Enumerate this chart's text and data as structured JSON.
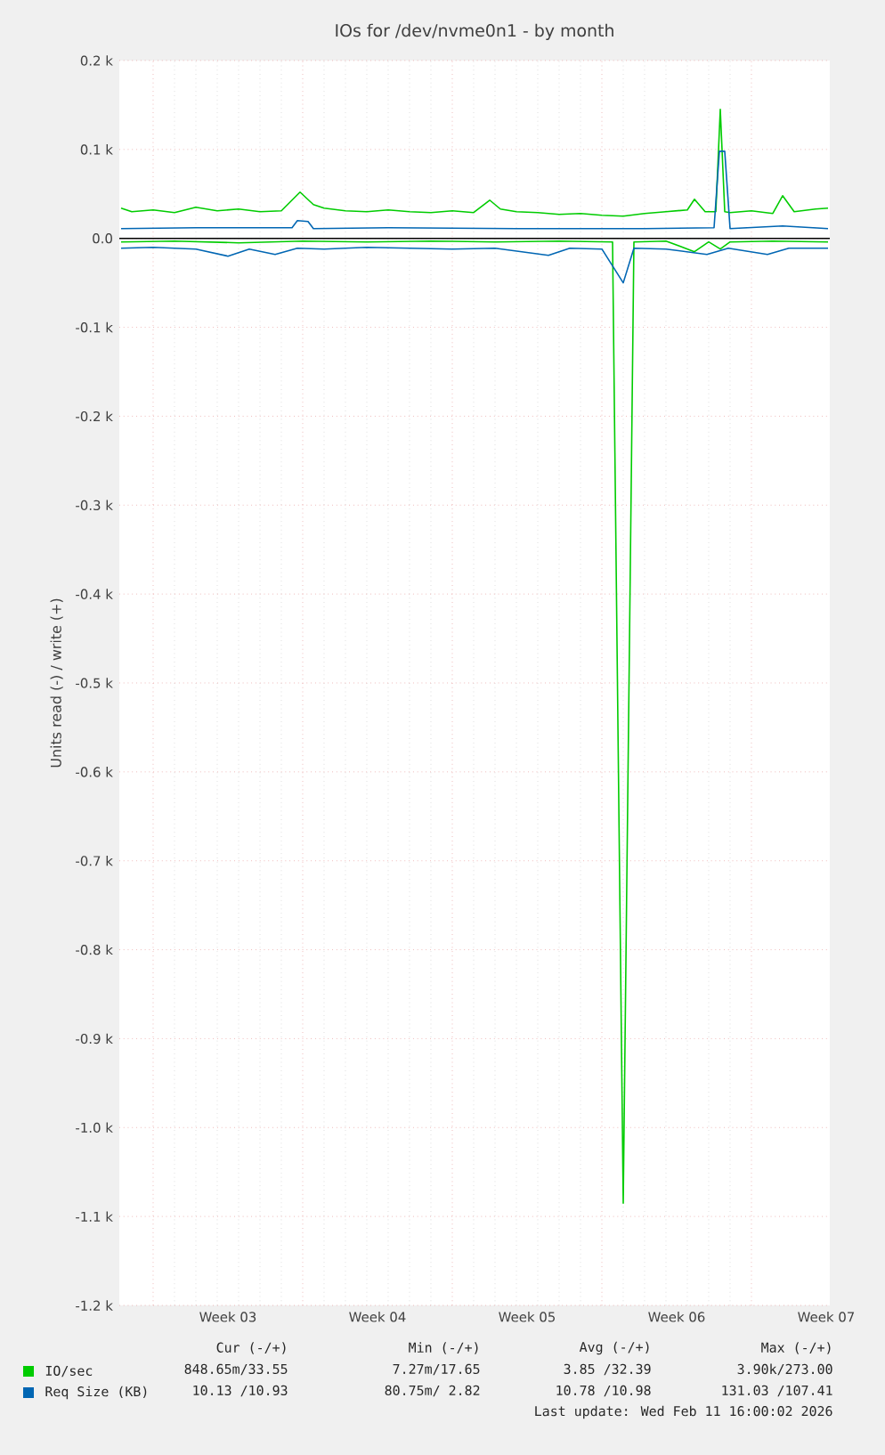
{
  "chart_data": {
    "type": "line",
    "title": "IOs for /dev/nvme0n1 - by month",
    "ylabel": "Units read (-) / write (+)",
    "xlim": [
      "2026-01-09T10:00",
      "2026-02-11T16:00"
    ],
    "xticks": [
      {
        "value": "2026-01-11",
        "label": null
      },
      {
        "value": "2026-01-18",
        "label": null
      },
      {
        "value": "2026-01-25",
        "label": null
      },
      {
        "value": "2026-02-01",
        "label": null
      },
      {
        "value": "2026-02-08",
        "label": null
      },
      {
        "value": "2026-01-14T12:00",
        "label": "Week 03"
      },
      {
        "value": "2026-01-21T12:00",
        "label": "Week 04"
      },
      {
        "value": "2026-01-28T12:00",
        "label": "Week 05"
      },
      {
        "value": "2026-02-04T12:00",
        "label": "Week 06"
      },
      {
        "value": "2026-02-11T12:00",
        "label": "Week 07"
      }
    ],
    "ylim": [
      -1.2,
      0.2
    ],
    "yticks": [
      {
        "value": -1.2,
        "label": "-1.2 k"
      },
      {
        "value": -1.1,
        "label": "-1.1 k"
      },
      {
        "value": -1.0,
        "label": "-1.0 k"
      },
      {
        "value": -0.9,
        "label": "-0.9 k"
      },
      {
        "value": -0.8,
        "label": "-0.8 k"
      },
      {
        "value": -0.7,
        "label": "-0.7 k"
      },
      {
        "value": -0.6,
        "label": "-0.6 k"
      },
      {
        "value": -0.5,
        "label": "-0.5 k"
      },
      {
        "value": -0.4,
        "label": "-0.4 k"
      },
      {
        "value": -0.3,
        "label": "-0.3 k"
      },
      {
        "value": -0.2,
        "label": "-0.2 k"
      },
      {
        "value": -0.1,
        "label": "-0.1 k"
      },
      {
        "value": 0,
        "label": "0.0"
      },
      {
        "value": 0.1,
        "label": "0.1 k"
      },
      {
        "value": 0.2,
        "label": "0.2 k"
      }
    ],
    "grid": true,
    "legend": "bottom",
    "marker": "none",
    "line_style": "solid",
    "ref_lines": [
      {
        "axis": "y",
        "value": 0,
        "color": "#000000"
      }
    ],
    "series": [
      {
        "color": "#00cc00",
        "x": [
          "2026-01-09T12:00",
          "2026-01-12",
          "2026-01-15",
          "2026-01-18",
          "2026-01-21",
          "2026-01-24",
          "2026-01-27",
          "2026-01-30",
          "2026-02-01T12:00",
          "2026-02-02",
          "2026-02-02T12:00",
          "2026-02-04",
          "2026-02-05T08:00",
          "2026-02-06",
          "2026-02-06T13:00",
          "2026-02-07",
          "2026-02-09",
          "2026-02-11T14:00"
        ],
        "values": [
          -0.004,
          -0.003,
          -0.005,
          -0.003,
          -0.004,
          -0.003,
          -0.004,
          -0.003,
          -0.004,
          -1.085,
          -0.004,
          -0.003,
          -0.015,
          -0.004,
          -0.012,
          -0.004,
          -0.003,
          -0.004
        ]
      },
      {
        "name": "IO/sec",
        "color": "#00cc00",
        "x": [
          "2026-01-09T12:00",
          "2026-01-10",
          "2026-01-11",
          "2026-01-12",
          "2026-01-13",
          "2026-01-14",
          "2026-01-15",
          "2026-01-16",
          "2026-01-17",
          "2026-01-17T21:00",
          "2026-01-18T12:00",
          "2026-01-19",
          "2026-01-20",
          "2026-01-21",
          "2026-01-22",
          "2026-01-23",
          "2026-01-24",
          "2026-01-25",
          "2026-01-26",
          "2026-01-26T18:00",
          "2026-01-27T06:00",
          "2026-01-28",
          "2026-01-29",
          "2026-01-30",
          "2026-01-31",
          "2026-02-01",
          "2026-02-02",
          "2026-02-03",
          "2026-02-04",
          "2026-02-05",
          "2026-02-05T08:00",
          "2026-02-05T20:00",
          "2026-02-06T08:00",
          "2026-02-06T13:00",
          "2026-02-06T18:00",
          "2026-02-07",
          "2026-02-08",
          "2026-02-09",
          "2026-02-09T11:00",
          "2026-02-10",
          "2026-02-11",
          "2026-02-11T14:00"
        ],
        "values": [
          0.034,
          0.03,
          0.032,
          0.029,
          0.035,
          0.031,
          0.033,
          0.03,
          0.031,
          0.052,
          0.038,
          0.034,
          0.031,
          0.03,
          0.032,
          0.03,
          0.029,
          0.031,
          0.029,
          0.043,
          0.033,
          0.03,
          0.029,
          0.027,
          0.028,
          0.026,
          0.025,
          0.028,
          0.03,
          0.032,
          0.044,
          0.03,
          0.03,
          0.145,
          0.03,
          0.029,
          0.031,
          0.028,
          0.048,
          0.03,
          0.033,
          0.034
        ]
      },
      {
        "color": "#0066b3",
        "x": [
          "2026-01-09T12:00",
          "2026-01-11",
          "2026-01-13",
          "2026-01-14T12:00",
          "2026-01-15T12:00",
          "2026-01-16T17:00",
          "2026-01-17T18:00",
          "2026-01-19",
          "2026-01-21",
          "2026-01-23",
          "2026-01-25",
          "2026-01-27",
          "2026-01-29T12:00",
          "2026-01-30T12:00",
          "2026-02-01",
          "2026-02-02",
          "2026-02-02T12:00",
          "2026-02-04",
          "2026-02-05T22:00",
          "2026-02-06T22:00",
          "2026-02-08T18:00",
          "2026-02-09T18:00",
          "2026-02-11T14:00"
        ],
        "values": [
          -0.011,
          -0.01,
          -0.012,
          -0.02,
          -0.012,
          -0.018,
          -0.011,
          -0.012,
          -0.01,
          -0.011,
          -0.012,
          -0.011,
          -0.019,
          -0.011,
          -0.012,
          -0.05,
          -0.011,
          -0.012,
          -0.018,
          -0.011,
          -0.018,
          -0.011,
          -0.011
        ]
      },
      {
        "name": "Req Size (KB)",
        "color": "#0066b3",
        "x": [
          "2026-01-09T12:00",
          "2026-01-13",
          "2026-01-17T12:00",
          "2026-01-17T18:00",
          "2026-01-18T06:00",
          "2026-01-18T12:00",
          "2026-01-22",
          "2026-01-28",
          "2026-02-03",
          "2026-02-06T06:00",
          "2026-02-06T12:00",
          "2026-02-06T18:00",
          "2026-02-07",
          "2026-02-09T11:00",
          "2026-02-11T14:00"
        ],
        "values": [
          0.011,
          0.012,
          0.012,
          0.02,
          0.019,
          0.011,
          0.012,
          0.011,
          0.011,
          0.012,
          0.098,
          0.098,
          0.011,
          0.014,
          0.011
        ]
      }
    ],
    "annotations": [
      "Cur (-/+)",
      "Min (-/+)",
      "Avg (-/+)",
      "Max (-/+)",
      "848.65m/33.55",
      "7.27m/17.65",
      "3.85 /32.39",
      "3.90k/273.00",
      "10.13 /10.93",
      "80.75m/ 2.82",
      "10.78 /10.98",
      "131.03 /107.41",
      "Last update: Wed Feb 11 16:00:02 2026"
    ]
  }
}
